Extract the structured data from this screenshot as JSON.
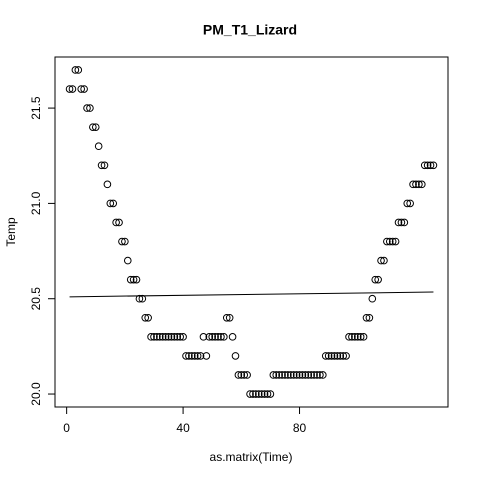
{
  "chart_data": {
    "type": "scatter",
    "title": "PM_T1_Lizard",
    "x_label": "as.matrix(Time)",
    "y_label": "Temp",
    "x": [
      1,
      2,
      3,
      4,
      5,
      6,
      7,
      8,
      9,
      10,
      11,
      12,
      13,
      14,
      15,
      16,
      17,
      18,
      19,
      20,
      21,
      22,
      23,
      24,
      25,
      26,
      27,
      28,
      29,
      30,
      31,
      32,
      33,
      34,
      35,
      36,
      37,
      38,
      39,
      40,
      41,
      42,
      43,
      44,
      45,
      46,
      47,
      48,
      49,
      50,
      51,
      52,
      53,
      54,
      55,
      56,
      57,
      58,
      59,
      60,
      61,
      62,
      63,
      64,
      65,
      66,
      67,
      68,
      69,
      70,
      71,
      72,
      73,
      74,
      75,
      76,
      77,
      78,
      79,
      80,
      81,
      82,
      83,
      84,
      85,
      86,
      87,
      88,
      89,
      90,
      91,
      92,
      93,
      94,
      95,
      96,
      97,
      98,
      99,
      100,
      101,
      102,
      103,
      104,
      105,
      106,
      107,
      108,
      109,
      110,
      111,
      112,
      113,
      114,
      115,
      116,
      117,
      118,
      119,
      120,
      121,
      122,
      123,
      124,
      125,
      126
    ],
    "values": [
      21.6,
      21.6,
      21.7,
      21.7,
      21.6,
      21.6,
      21.5,
      21.5,
      21.4,
      21.4,
      21.3,
      21.2,
      21.2,
      21.1,
      21.0,
      21.0,
      20.9,
      20.9,
      20.8,
      20.8,
      20.7,
      20.6,
      20.6,
      20.6,
      20.5,
      20.5,
      20.4,
      20.4,
      20.3,
      20.3,
      20.3,
      20.3,
      20.3,
      20.3,
      20.3,
      20.3,
      20.3,
      20.3,
      20.3,
      20.3,
      20.2,
      20.2,
      20.2,
      20.2,
      20.2,
      20.2,
      20.3,
      20.2,
      20.3,
      20.3,
      20.3,
      20.3,
      20.3,
      20.3,
      20.4,
      20.4,
      20.3,
      20.2,
      20.1,
      20.1,
      20.1,
      20.1,
      20.0,
      20.0,
      20.0,
      20.0,
      20.0,
      20.0,
      20.0,
      20.0,
      20.1,
      20.1,
      20.1,
      20.1,
      20.1,
      20.1,
      20.1,
      20.1,
      20.1,
      20.1,
      20.1,
      20.1,
      20.1,
      20.1,
      20.1,
      20.1,
      20.1,
      20.1,
      20.2,
      20.2,
      20.2,
      20.2,
      20.2,
      20.2,
      20.2,
      20.2,
      20.3,
      20.3,
      20.3,
      20.3,
      20.3,
      20.3,
      20.4,
      20.4,
      20.5,
      20.6,
      20.6,
      20.7,
      20.7,
      20.8,
      20.8,
      20.8,
      20.8,
      20.9,
      20.9,
      20.9,
      21.0,
      21.0,
      21.1,
      21.1,
      21.1,
      21.1,
      21.2,
      21.2,
      21.2,
      21.2
    ],
    "trend_line": {
      "x": [
        1,
        126
      ],
      "y": [
        20.51,
        20.535
      ]
    },
    "xlim": [
      -4,
      131
    ],
    "xticks": [
      0,
      40,
      80
    ],
    "ylim": [
      19.932,
      21.768
    ],
    "yticks": [
      {
        "value": 20,
        "label": "20.0"
      },
      20.5,
      {
        "value": 21,
        "label": "21.0"
      },
      21.5
    ]
  }
}
